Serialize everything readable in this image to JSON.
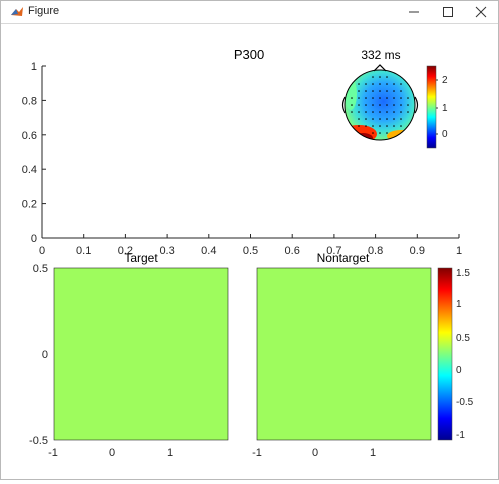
{
  "window": {
    "title": "Figure"
  },
  "topplot": {
    "title": "P300",
    "ylim": [
      0,
      1
    ],
    "xlim": [
      0,
      1
    ],
    "yticks": [
      "0",
      "0.2",
      "0.4",
      "0.6",
      "0.8",
      "1"
    ],
    "xticks": [
      "0",
      "0.1",
      "0.2",
      "0.3",
      "0.4",
      "0.5",
      "0.6",
      "0.7",
      "0.8",
      "0.9",
      "1"
    ]
  },
  "topomap": {
    "title": "332 ms",
    "colorbar_ticks": [
      "2",
      "1",
      "0"
    ]
  },
  "target_panel": {
    "title": "Target",
    "yticks": [
      "0.5",
      "0",
      "-0.5"
    ],
    "xticks": [
      "-1",
      "0",
      "1"
    ],
    "fill_color": "#9efc5d"
  },
  "nontarget_panel": {
    "title": "Nontarget",
    "xticks": [
      "-1",
      "0",
      "1"
    ],
    "fill_color": "#9efc5d"
  },
  "bottom_colorbar": {
    "ticks": [
      "1.5",
      "1",
      "0.5",
      "0",
      "-0.5",
      "-1"
    ]
  },
  "chart_data": [
    {
      "type": "line",
      "title": "P300",
      "xlim": [
        0,
        1
      ],
      "ylim": [
        0,
        1
      ],
      "series": []
    },
    {
      "type": "heatmap",
      "title": "Target",
      "xlim": [
        -1,
        1
      ],
      "ylim": [
        -0.5,
        0.5
      ],
      "uniform_value_color": "#9efc5d"
    },
    {
      "type": "heatmap",
      "title": "Nontarget",
      "xlim": [
        -1,
        1
      ],
      "ylim": [
        -0.5,
        0.5
      ],
      "uniform_value_color": "#9efc5d"
    }
  ]
}
